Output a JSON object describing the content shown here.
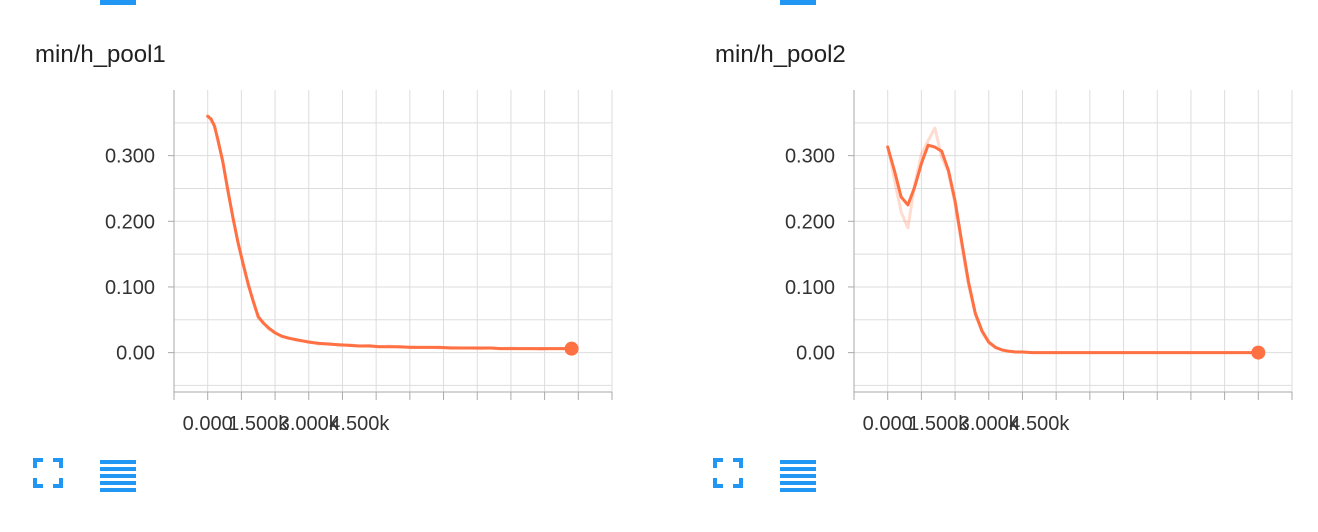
{
  "colors": {
    "accent": "#2196f3",
    "series": "#ff7043",
    "grid": "#dddddd",
    "axis": "#aaaaaa"
  },
  "icons": {
    "expand": "fullscreen-icon",
    "data": "list-icon"
  },
  "chart_data": [
    {
      "type": "line",
      "title": "min/h_pool1",
      "xlim": [
        -1000,
        12000
      ],
      "ylim": [
        -0.06,
        0.4
      ],
      "xticks": [
        0,
        1500,
        3000,
        4500
      ],
      "xtick_labels": [
        "0.000",
        "1.500k",
        "3.000k",
        "4.500k"
      ],
      "yticks": [
        0.0,
        0.1,
        0.2,
        0.3
      ],
      "ytick_labels": [
        "0.00",
        "0.100",
        "0.200",
        "0.300"
      ],
      "grid": true,
      "series": [
        {
          "x": [
            0,
            100,
            200,
            300,
            450,
            600,
            750,
            900,
            1050,
            1200,
            1350,
            1500,
            1650,
            1800,
            2000,
            2200,
            2400,
            2600,
            2800,
            3000,
            3300,
            3600,
            3900,
            4200,
            4500,
            4800,
            5100,
            5400,
            5700,
            6000,
            6300,
            6600,
            6900,
            7200,
            7500,
            7800,
            8100,
            8400,
            8700,
            9000,
            9300,
            9600,
            9900,
            10200,
            10500,
            10800
          ],
          "y": [
            0.36,
            0.356,
            0.345,
            0.325,
            0.29,
            0.247,
            0.205,
            0.168,
            0.135,
            0.105,
            0.078,
            0.055,
            0.045,
            0.038,
            0.03,
            0.025,
            0.022,
            0.02,
            0.018,
            0.016,
            0.014,
            0.013,
            0.012,
            0.011,
            0.01,
            0.01,
            0.009,
            0.009,
            0.009,
            0.008,
            0.008,
            0.008,
            0.008,
            0.007,
            0.007,
            0.007,
            0.007,
            0.007,
            0.006,
            0.006,
            0.006,
            0.006,
            0.006,
            0.006,
            0.006,
            0.006
          ],
          "raw_y": [
            0.362,
            0.353,
            0.348,
            0.322,
            0.293,
            0.244,
            0.208,
            0.165,
            0.138,
            0.102,
            0.081,
            0.052,
            0.047,
            0.036,
            0.031,
            0.024,
            0.023,
            0.019,
            0.018,
            0.017,
            0.013,
            0.014,
            0.011,
            0.012,
            0.01,
            0.011,
            0.009,
            0.01,
            0.008,
            0.009,
            0.008,
            0.008,
            0.007,
            0.008,
            0.007,
            0.007,
            0.006,
            0.007,
            0.006,
            0.007,
            0.006,
            0.006,
            0.005,
            0.006,
            0.006,
            0.006
          ]
        }
      ]
    },
    {
      "type": "line",
      "title": "min/h_pool2",
      "xlim": [
        -1000,
        12000
      ],
      "ylim": [
        -0.06,
        0.4
      ],
      "xticks": [
        0,
        1500,
        3000,
        4500
      ],
      "xtick_labels": [
        "0.000",
        "1.500k",
        "3.000k",
        "4.500k"
      ],
      "yticks": [
        0.0,
        0.1,
        0.2,
        0.3
      ],
      "ytick_labels": [
        "0.00",
        "0.100",
        "0.200",
        "0.300"
      ],
      "grid": true,
      "series": [
        {
          "x": [
            0,
            200,
            400,
            600,
            800,
            1000,
            1200,
            1400,
            1600,
            1800,
            2000,
            2200,
            2400,
            2600,
            2800,
            3000,
            3200,
            3400,
            3600,
            3800,
            4000,
            4300,
            4600,
            5000,
            5500,
            6000,
            6500,
            7000,
            7500,
            8000,
            8500,
            9000,
            9500,
            10000,
            10500,
            11000
          ],
          "y": [
            0.313,
            0.277,
            0.237,
            0.225,
            0.252,
            0.288,
            0.316,
            0.313,
            0.307,
            0.278,
            0.231,
            0.168,
            0.107,
            0.06,
            0.033,
            0.016,
            0.008,
            0.004,
            0.002,
            0.001,
            0.001,
            0.0,
            0.0,
            0.0,
            0.0,
            0.0,
            0.0,
            0.0,
            0.0,
            0.0,
            0.0,
            0.0,
            0.0,
            0.0,
            0.0,
            0.0
          ],
          "raw_y": [
            0.316,
            0.264,
            0.214,
            0.19,
            0.256,
            0.302,
            0.323,
            0.342,
            0.298,
            0.275,
            0.226,
            0.162,
            0.102,
            0.058,
            0.031,
            0.015,
            0.007,
            0.004,
            0.002,
            0.001,
            0.001,
            0.0,
            0.0,
            0.0,
            0.0,
            0.0,
            0.0,
            0.0,
            0.0,
            0.0,
            0.0,
            0.0,
            0.0,
            0.0,
            0.0,
            0.0
          ]
        }
      ]
    }
  ]
}
